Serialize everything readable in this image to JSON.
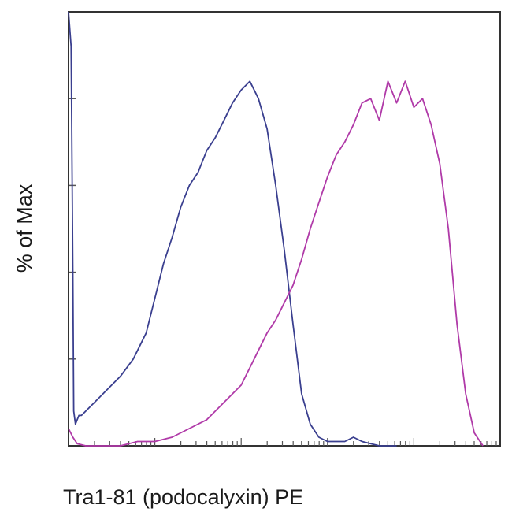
{
  "chart_data": {
    "type": "line",
    "title": "",
    "xlabel": "Tra1-81 (podocalyxin) PE",
    "ylabel": "% of Max",
    "x_scale": "log",
    "xlim": [
      0,
      5
    ],
    "ylim": [
      0,
      100
    ],
    "grid": false,
    "legend": "none",
    "series": [
      {
        "color": "#3a3f8f",
        "x": [
          0.0,
          0.03,
          0.05,
          0.06,
          0.08,
          0.1,
          0.12,
          0.15,
          0.2,
          0.3,
          0.45,
          0.6,
          0.75,
          0.9,
          1.0,
          1.1,
          1.2,
          1.3,
          1.4,
          1.5,
          1.6,
          1.7,
          1.8,
          1.9,
          2.0,
          2.1,
          2.2,
          2.3,
          2.4,
          2.5,
          2.6,
          2.7,
          2.8,
          2.9,
          3.0,
          3.1,
          3.2,
          3.3,
          3.4,
          3.5,
          3.6,
          3.8
        ],
        "y": [
          100,
          92,
          40,
          8,
          5,
          6,
          7,
          7,
          8,
          10,
          13,
          16,
          20,
          26,
          34,
          42,
          48,
          55,
          60,
          63,
          68,
          71,
          75,
          79,
          82,
          84,
          80,
          73,
          60,
          45,
          28,
          12,
          5,
          2,
          1,
          1,
          1,
          2,
          1,
          0.5,
          0,
          0
        ]
      },
      {
        "color": "#b03aa8",
        "x": [
          0.0,
          0.05,
          0.1,
          0.2,
          0.6,
          0.8,
          1.0,
          1.2,
          1.4,
          1.6,
          1.8,
          2.0,
          2.1,
          2.2,
          2.3,
          2.4,
          2.5,
          2.6,
          2.7,
          2.8,
          2.9,
          3.0,
          3.1,
          3.2,
          3.3,
          3.4,
          3.5,
          3.6,
          3.7,
          3.8,
          3.9,
          4.0,
          4.1,
          4.2,
          4.3,
          4.4,
          4.5,
          4.6,
          4.7,
          4.8
        ],
        "y": [
          4,
          2,
          0.5,
          0,
          0,
          1,
          1,
          2,
          4,
          6,
          10,
          14,
          18,
          22,
          26,
          29,
          33,
          37,
          43,
          50,
          56,
          62,
          67,
          70,
          74,
          79,
          80,
          75,
          84,
          79,
          84,
          78,
          80,
          74,
          65,
          50,
          28,
          12,
          3,
          0
        ]
      }
    ]
  }
}
